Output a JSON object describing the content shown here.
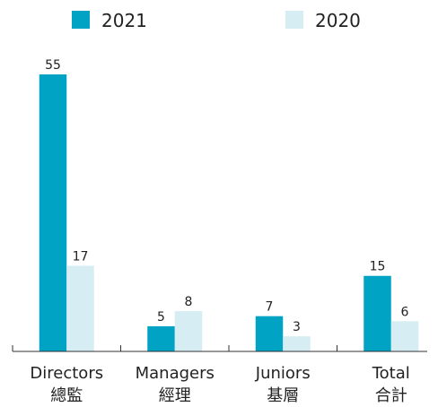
{
  "chart_data": {
    "type": "bar",
    "categories": [
      [
        "Directors",
        "總監"
      ],
      [
        "Managers",
        "經理"
      ],
      [
        "Juniors",
        "基層"
      ],
      [
        "Total",
        "合計"
      ]
    ],
    "series": [
      {
        "name": "2021",
        "color": "#00a3c4",
        "values": [
          55,
          5,
          7,
          15
        ]
      },
      {
        "name": "2020",
        "color": "#d6eef3",
        "values": [
          17,
          8,
          3,
          6
        ]
      }
    ]
  }
}
